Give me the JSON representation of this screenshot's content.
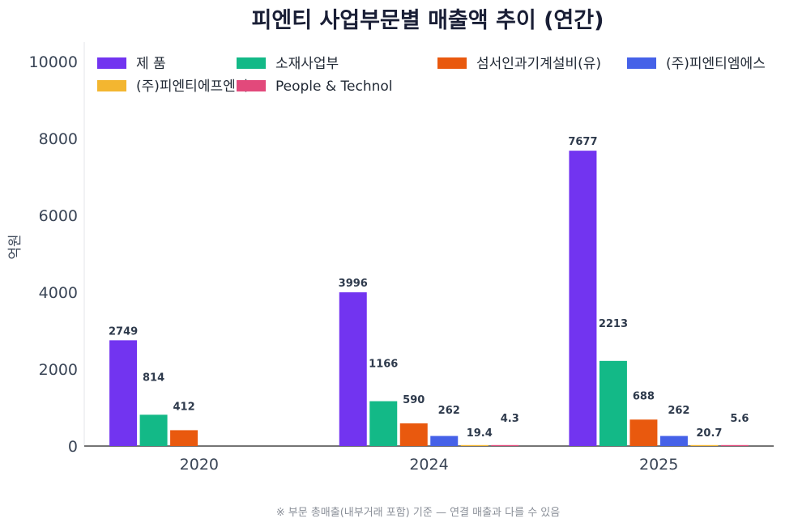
{
  "chart_data": {
    "type": "bar",
    "title": "피엔티 사업부문별 매출액 추이 (연간)",
    "ylabel": "억원",
    "xlabel": "",
    "ylim": [
      0,
      10500
    ],
    "yticks": [
      0,
      2000,
      4000,
      6000,
      8000,
      10000
    ],
    "categories": [
      "2020",
      "2024",
      "2025"
    ],
    "series": [
      {
        "name": "제 품",
        "color": "#7234f0",
        "values": [
          2749,
          3996,
          7677
        ],
        "labels": [
          "2749",
          "3996",
          "7677"
        ]
      },
      {
        "name": "소재사업부",
        "color": "#13b987",
        "values": [
          814,
          1166,
          2213
        ],
        "labels": [
          "814",
          "1166",
          "2213"
        ]
      },
      {
        "name": "섬서인과기계설비(유)",
        "color": "#e9590e",
        "values": [
          412,
          590,
          688
        ],
        "labels": [
          "412",
          "590",
          "688"
        ]
      },
      {
        "name": "(주)피엔티엠에스",
        "color": "#4561e8",
        "values": [
          null,
          262,
          262
        ],
        "labels": [
          null,
          "262",
          "262"
        ]
      },
      {
        "name": "(주)피엔티에프엔비",
        "color": "#f3b630",
        "values": [
          null,
          19.4,
          20.7
        ],
        "labels": [
          null,
          "19.4",
          "20.7"
        ]
      },
      {
        "name": "People & Technol",
        "color": "#e2497b",
        "values": [
          null,
          4.3,
          5.6
        ],
        "labels": [
          null,
          "4.3",
          "5.6"
        ]
      }
    ],
    "legend_position": "top",
    "grid": false,
    "footnote": "※ 부문 총매출(내부거래 포함) 기준 — 연결 매출과 다를 수 있음"
  }
}
